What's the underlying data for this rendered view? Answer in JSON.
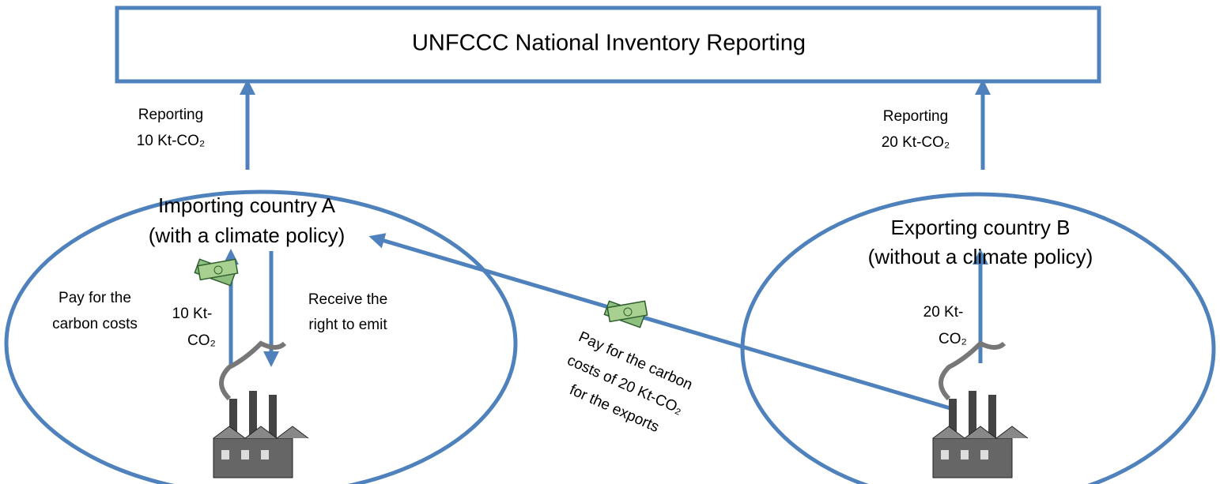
{
  "header": {
    "title": "UNFCCC National Inventory Reporting"
  },
  "nodes": [
    {
      "label": [
        "Importing country A",
        "(with a climate policy)"
      ]
    },
    {
      "label": [
        "Exporting country B",
        "(without a climate policy)"
      ]
    }
  ],
  "reporting": [
    {
      "label": [
        "Reporting",
        "10 Kt-CO₂"
      ]
    },
    {
      "label": [
        "Reporting",
        "20 Kt-CO₂"
      ]
    }
  ],
  "flows": [
    {
      "label": [
        "Pay for the",
        "carbon costs"
      ]
    },
    {
      "label": [
        "10 Kt-",
        "CO₂"
      ]
    },
    {
      "label": [
        "Receive the",
        "right to emit"
      ]
    },
    {
      "label": [
        "20 Kt-",
        "CO₂"
      ]
    },
    {
      "label": [
        "Pay for the carbon",
        "costs of 20 Kt-CO₂",
        "for the exports"
      ]
    }
  ]
}
